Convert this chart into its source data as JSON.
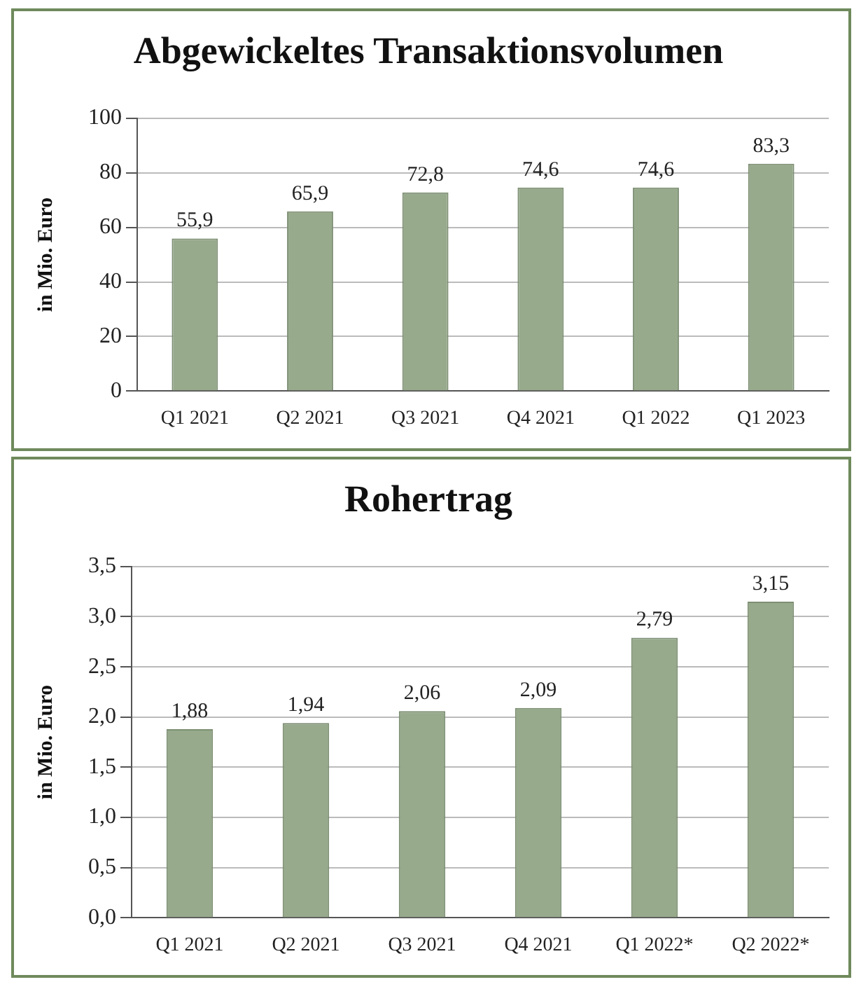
{
  "chart_data": [
    {
      "type": "bar",
      "title": "Abgewickeltes Transaktionsvolumen",
      "ylabel": "in Mio. Euro",
      "categories": [
        "Q1 2021",
        "Q2 2021",
        "Q3 2021",
        "Q4 2021",
        "Q1 2022",
        "Q1 2023"
      ],
      "values": [
        55.9,
        65.9,
        72.8,
        74.6,
        74.6,
        83.3
      ],
      "value_labels": [
        "55,9",
        "65,9",
        "72,8",
        "74,6",
        "74,6",
        "83,3"
      ],
      "color": "#97aa8c",
      "ylim": [
        0,
        100
      ],
      "yticks": [
        0,
        20,
        40,
        60,
        80,
        100
      ],
      "grid": "y",
      "legend": false
    },
    {
      "type": "bar",
      "title": "Rohertrag",
      "ylabel": "in Mio. Euro",
      "categories": [
        "Q1 2021",
        "Q2 2021",
        "Q3 2021",
        "Q4 2021",
        "Q1 2022*",
        "Q2 2022*"
      ],
      "values": [
        1.88,
        1.94,
        2.06,
        2.09,
        2.79,
        3.15
      ],
      "value_labels": [
        "1,88",
        "1,94",
        "2,06",
        "2,09",
        "2,79",
        "3,15"
      ],
      "color": "#97aa8c",
      "ylim": [
        0,
        3.5
      ],
      "yticks": [
        {
          "value": 0,
          "label": "0,0"
        },
        {
          "value": 0.5,
          "label": "0,5"
        },
        {
          "value": 1,
          "label": "1,0"
        },
        {
          "value": 1.5,
          "label": "1,5"
        },
        {
          "value": 2,
          "label": "2,0"
        },
        {
          "value": 2.5,
          "label": "2,5"
        },
        {
          "value": 3,
          "label": "3,0"
        },
        {
          "value": 3.5,
          "label": "3,5"
        }
      ],
      "grid": "y",
      "legend": false
    }
  ]
}
